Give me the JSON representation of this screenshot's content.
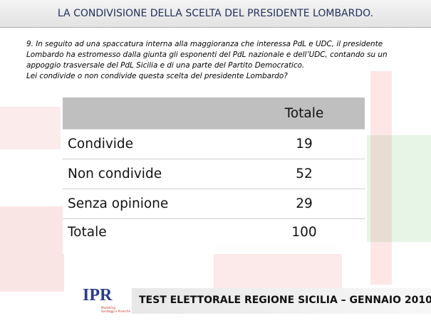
{
  "header": {
    "title": "LA CONDIVISIONE DELLA SCELTA DEL PRESIDENTE LOMBARDO."
  },
  "question": [
    "9. In seguito ad una spaccatura interna alla maggioranza che interessa PdL e UDC, il presidente",
    "Lombardo ha estromesso dalla giunta gli esponenti del PdL nazionale e dell’UDC, contando su un",
    "appoggio trasversale del PdL Sicilia e di una parte del Partito Democratico.",
    "Lei condivide o non condivide questa scelta del presidente Lombardo?"
  ],
  "table": {
    "columns": [
      "Totale"
    ],
    "rows": [
      [
        "Condivide",
        19
      ],
      [
        "Non condivide",
        52
      ],
      [
        "Senza opinione",
        29
      ],
      [
        "Totale",
        100
      ]
    ]
  },
  "footer": {
    "logo": "IPR",
    "logo_sub": [
      "Marketing",
      "Sondaggi e Ricerche"
    ],
    "text": "TEST ELETTORALE REGIONE SICILIA – GENNAIO 2010"
  }
}
